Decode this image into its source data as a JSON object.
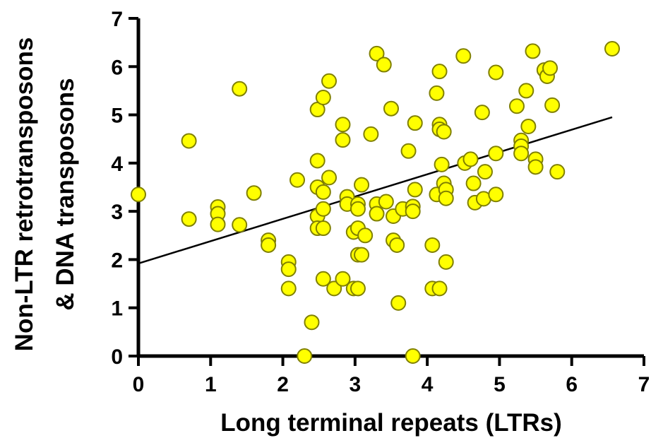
{
  "chart_data": {
    "type": "scatter",
    "title": "",
    "xlabel": "Long terminal repeats (LTRs)",
    "ylabel_lines": [
      "Non-LTR retrotransposons",
      "& DNA transposons"
    ],
    "xlim": [
      0,
      7
    ],
    "ylim": [
      0,
      7
    ],
    "xticks": [
      "0",
      "1",
      "2",
      "3",
      "4",
      "5",
      "6",
      "7"
    ],
    "yticks": [
      "0",
      "1",
      "2",
      "3",
      "4",
      "5",
      "6",
      "7"
    ],
    "grid": false,
    "legend": "none",
    "marker_color": "#ffff00",
    "marker_edge_color": "#808000",
    "trendline": {
      "x": [
        0,
        6.56
      ],
      "y": [
        1.92,
        4.95
      ]
    },
    "points": [
      {
        "x": 0.0,
        "y": 3.35
      },
      {
        "x": 0.7,
        "y": 4.46
      },
      {
        "x": 0.7,
        "y": 2.84
      },
      {
        "x": 1.1,
        "y": 3.09
      },
      {
        "x": 1.1,
        "y": 2.95
      },
      {
        "x": 1.1,
        "y": 2.73
      },
      {
        "x": 1.4,
        "y": 5.54
      },
      {
        "x": 1.4,
        "y": 2.72
      },
      {
        "x": 1.6,
        "y": 3.38
      },
      {
        "x": 1.8,
        "y": 2.4
      },
      {
        "x": 1.8,
        "y": 2.3
      },
      {
        "x": 2.08,
        "y": 1.95
      },
      {
        "x": 2.08,
        "y": 1.8
      },
      {
        "x": 2.08,
        "y": 1.4
      },
      {
        "x": 2.2,
        "y": 3.65
      },
      {
        "x": 2.3,
        "y": 0.0
      },
      {
        "x": 2.4,
        "y": 0.7
      },
      {
        "x": 2.48,
        "y": 5.11
      },
      {
        "x": 2.48,
        "y": 4.05
      },
      {
        "x": 2.48,
        "y": 3.5
      },
      {
        "x": 2.48,
        "y": 2.9
      },
      {
        "x": 2.48,
        "y": 2.65
      },
      {
        "x": 2.56,
        "y": 5.36
      },
      {
        "x": 2.56,
        "y": 3.4
      },
      {
        "x": 2.56,
        "y": 3.05
      },
      {
        "x": 2.56,
        "y": 2.65
      },
      {
        "x": 2.56,
        "y": 1.6
      },
      {
        "x": 2.64,
        "y": 5.7
      },
      {
        "x": 2.64,
        "y": 3.7
      },
      {
        "x": 2.71,
        "y": 1.4
      },
      {
        "x": 2.83,
        "y": 4.8
      },
      {
        "x": 2.83,
        "y": 4.48
      },
      {
        "x": 2.83,
        "y": 1.6
      },
      {
        "x": 2.89,
        "y": 3.3
      },
      {
        "x": 2.89,
        "y": 3.15
      },
      {
        "x": 2.98,
        "y": 2.57
      },
      {
        "x": 2.98,
        "y": 1.4
      },
      {
        "x": 3.04,
        "y": 3.15
      },
      {
        "x": 3.04,
        "y": 3.05
      },
      {
        "x": 3.04,
        "y": 2.65
      },
      {
        "x": 3.04,
        "y": 2.1
      },
      {
        "x": 3.04,
        "y": 1.4
      },
      {
        "x": 3.09,
        "y": 3.55
      },
      {
        "x": 3.09,
        "y": 2.1
      },
      {
        "x": 3.14,
        "y": 2.5
      },
      {
        "x": 3.22,
        "y": 4.6
      },
      {
        "x": 3.3,
        "y": 6.27
      },
      {
        "x": 3.3,
        "y": 3.15
      },
      {
        "x": 3.3,
        "y": 2.95
      },
      {
        "x": 3.4,
        "y": 6.04
      },
      {
        "x": 3.43,
        "y": 3.2
      },
      {
        "x": 3.5,
        "y": 5.13
      },
      {
        "x": 3.53,
        "y": 2.9
      },
      {
        "x": 3.53,
        "y": 2.4
      },
      {
        "x": 3.58,
        "y": 2.3
      },
      {
        "x": 3.6,
        "y": 1.1
      },
      {
        "x": 3.66,
        "y": 3.05
      },
      {
        "x": 3.74,
        "y": 4.25
      },
      {
        "x": 3.8,
        "y": 3.1
      },
      {
        "x": 3.8,
        "y": 3.0
      },
      {
        "x": 3.8,
        "y": 0.0
      },
      {
        "x": 3.83,
        "y": 4.83
      },
      {
        "x": 3.83,
        "y": 3.45
      },
      {
        "x": 4.07,
        "y": 2.3
      },
      {
        "x": 4.07,
        "y": 1.4
      },
      {
        "x": 4.13,
        "y": 5.45
      },
      {
        "x": 4.13,
        "y": 3.35
      },
      {
        "x": 4.17,
        "y": 5.9
      },
      {
        "x": 4.17,
        "y": 4.8
      },
      {
        "x": 4.17,
        "y": 4.7
      },
      {
        "x": 4.17,
        "y": 1.4
      },
      {
        "x": 4.2,
        "y": 3.97
      },
      {
        "x": 4.23,
        "y": 4.65
      },
      {
        "x": 4.23,
        "y": 3.58
      },
      {
        "x": 4.26,
        "y": 3.45
      },
      {
        "x": 4.26,
        "y": 3.27
      },
      {
        "x": 4.26,
        "y": 1.95
      },
      {
        "x": 4.5,
        "y": 6.22
      },
      {
        "x": 4.52,
        "y": 4.0
      },
      {
        "x": 4.6,
        "y": 4.08
      },
      {
        "x": 4.64,
        "y": 3.58
      },
      {
        "x": 4.66,
        "y": 3.18
      },
      {
        "x": 4.76,
        "y": 5.05
      },
      {
        "x": 4.78,
        "y": 3.26
      },
      {
        "x": 4.8,
        "y": 3.82
      },
      {
        "x": 4.95,
        "y": 5.88
      },
      {
        "x": 4.95,
        "y": 4.2
      },
      {
        "x": 4.95,
        "y": 3.35
      },
      {
        "x": 5.24,
        "y": 5.18
      },
      {
        "x": 5.3,
        "y": 4.47
      },
      {
        "x": 5.3,
        "y": 4.35
      },
      {
        "x": 5.3,
        "y": 4.2
      },
      {
        "x": 5.37,
        "y": 5.5
      },
      {
        "x": 5.4,
        "y": 4.76
      },
      {
        "x": 5.46,
        "y": 6.32
      },
      {
        "x": 5.5,
        "y": 4.08
      },
      {
        "x": 5.5,
        "y": 3.92
      },
      {
        "x": 5.62,
        "y": 5.93
      },
      {
        "x": 5.66,
        "y": 5.8
      },
      {
        "x": 5.7,
        "y": 5.97
      },
      {
        "x": 5.73,
        "y": 5.2
      },
      {
        "x": 5.8,
        "y": 3.82
      },
      {
        "x": 6.56,
        "y": 6.37
      }
    ]
  }
}
